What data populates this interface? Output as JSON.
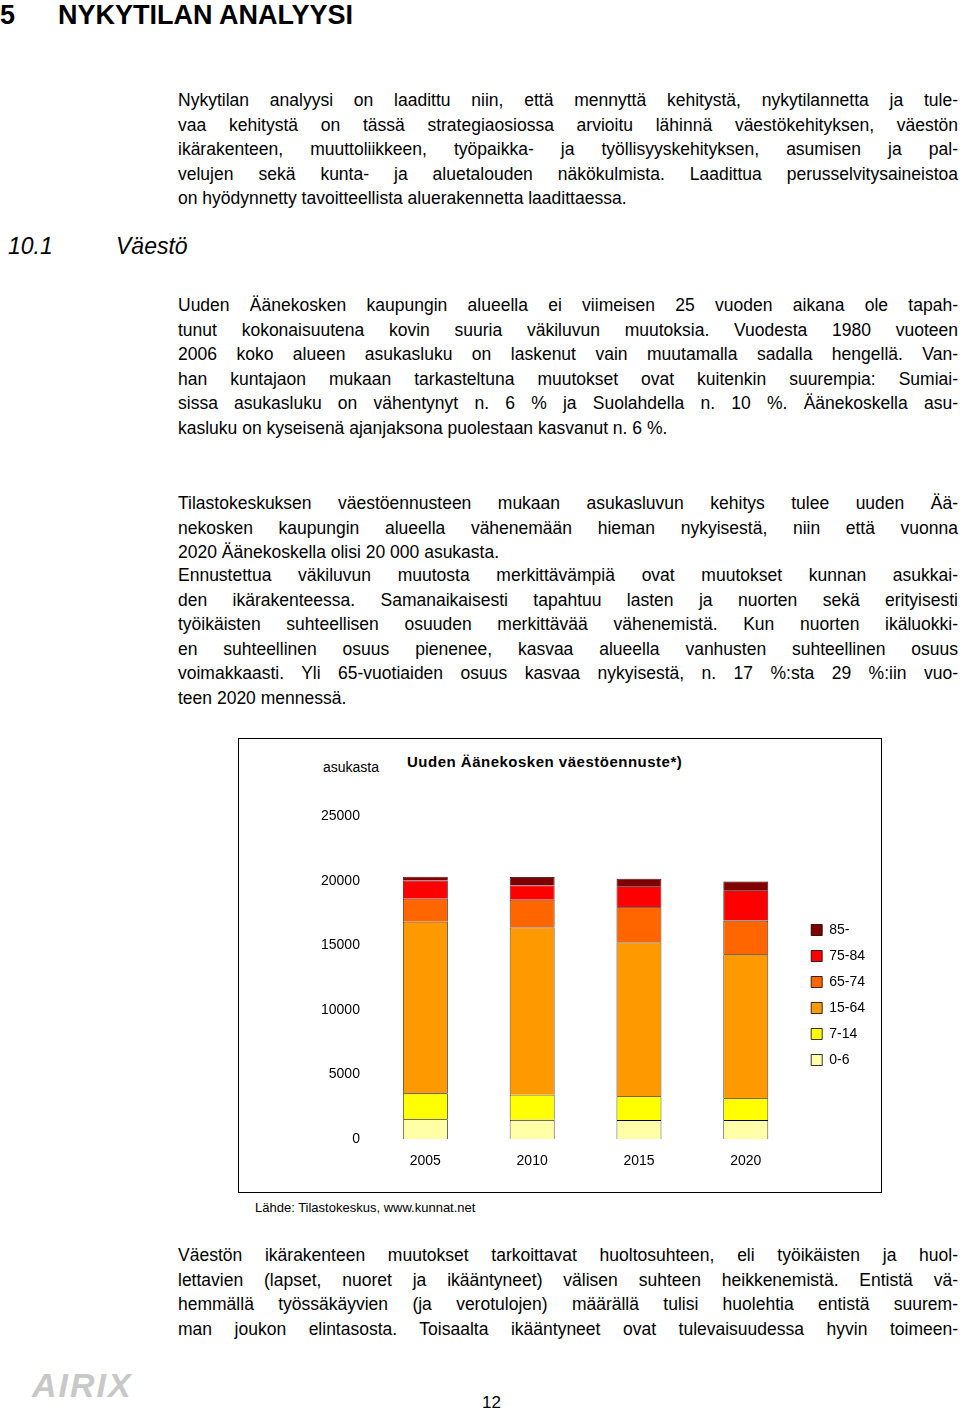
{
  "document": {
    "header": {
      "number": "5",
      "title": "NYKYTILAN ANALYYSI"
    },
    "section": {
      "number": "10.1",
      "title": "Väestö"
    },
    "paragraphs_before_chart": [
      [
        "Nykytilan analyysi on laadittu niin, että mennyttä kehitystä, nykytilannetta ja tule-",
        "vaa kehitystä on tässä strategiaosiossa arvioitu lähinnä väestökehityksen, väestön",
        "ikärakenteen, muuttoliikkeen, työpaikka- ja työllisyyskehityksen, asumisen ja pal-",
        "velujen sekä kunta- ja aluetalouden näkökulmista. Laadittua perusselvitysaineistoa",
        "on hyödynnetty tavoitteellista aluerakennetta laadittaessa."
      ],
      [
        "Uuden Äänekosken kaupungin alueella ei viimeisen 25 vuoden aikana ole tapah-",
        "tunut kokonaisuutena kovin suuria väkiluvun muutoksia. Vuodesta 1980 vuoteen",
        "2006 koko alueen asukasluku on laskenut vain muutamalla sadalla hengellä. Van-",
        "han kuntajaon mukaan tarkasteltuna muutokset ovat kuitenkin suurempia: Sumiai-",
        "sissa asukasluku on vähentynyt n. 6 % ja Suolahdella n. 10 %. Äänekoskella asu-",
        "kasluku on kyseisenä ajanjaksona puolestaan kasvanut n. 6 %."
      ],
      [
        "Tilastokeskuksen väestöennusteen mukaan asukasluvun kehitys tulee uuden Ää-",
        "nekosken kaupungin alueella vähenemään hieman nykyisestä, niin että vuonna",
        "2020 Äänekoskella olisi 20 000 asukasta."
      ],
      [
        "Ennustettua väkiluvun muutosta merkittävämpiä ovat muutokset kunnan asukkai-",
        "den ikärakenteessa. Samanaikaisesti tapahtuu lasten ja nuorten sekä erityisesti",
        "työikäisten suhteellisen osuuden merkittävää vähenemistä. Kun nuorten ikäluokki-",
        "en suhteellinen osuus pienenee, kasvaa alueella vanhusten suhteellinen osuus",
        "voimakkaasti. Yli 65-vuotiaiden osuus kasvaa nykyisestä, n. 17 %:sta 29 %:iin vuo-",
        "teen 2020 mennessä."
      ]
    ],
    "chart_source": "Lähde: Tilastokeskus, www.kunnat.net",
    "paragraphs_after_chart": [
      [
        "Väestön ikärakenteen muutokset tarkoittavat huoltosuhteen, eli työikäisten ja huol-",
        "lettavien (lapset, nuoret ja ikääntyneet) välisen suhteen heikkenemistä. Entistä vä-",
        "hemmällä työssäkäyvien (ja verotulojen) määrällä tulisi huolehtia entistä suurem-",
        "man joukon elintasosta. Toisaalta ikääntyneet ovat tulevaisuudessa hyvin toimeen-"
      ]
    ],
    "footer": {
      "logo": "AIRIX",
      "page_number": "12"
    }
  },
  "chart_data": {
    "type": "bar",
    "title": "Uuden Äänekosken väestöennuste*)",
    "y_label": "asukasta",
    "categories": [
      "2005",
      "2010",
      "2015",
      "2020"
    ],
    "stacked": true,
    "series": [
      {
        "name": "0-6",
        "color": "#ffffa8",
        "values": [
          1550,
          1500,
          1480,
          1480
        ]
      },
      {
        "name": "7-14",
        "color": "#ffff00",
        "values": [
          2000,
          1950,
          1850,
          1700
        ]
      },
      {
        "name": "15-64",
        "color": "#ff9900",
        "values": [
          13300,
          12950,
          11900,
          11150
        ]
      },
      {
        "name": "65-74",
        "color": "#ff6600",
        "values": [
          1780,
          2150,
          2730,
          2600
        ]
      },
      {
        "name": "75-84",
        "color": "#ff0000",
        "values": [
          1400,
          1100,
          1630,
          2360
        ]
      },
      {
        "name": "85-",
        "color": "#800000",
        "values": [
          300,
          660,
          590,
          670
        ]
      }
    ],
    "ylim": [
      0,
      25000
    ],
    "yticks": [
      0,
      5000,
      10000,
      15000,
      20000,
      25000
    ],
    "grid": false,
    "legend": "right"
  }
}
